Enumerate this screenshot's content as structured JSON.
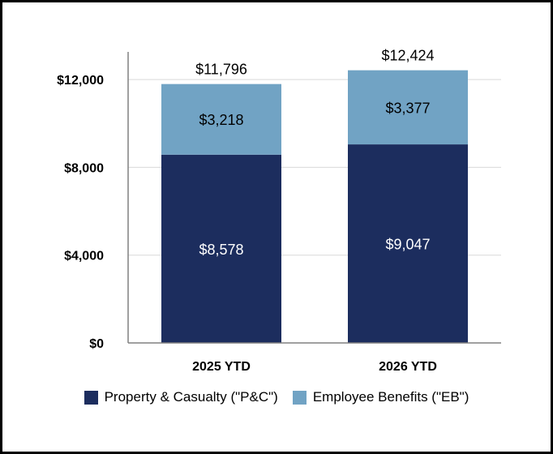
{
  "chart_data": {
    "type": "bar",
    "stacked": true,
    "categories": [
      "2025 YTD",
      "2026 YTD"
    ],
    "series": [
      {
        "name": "Property & Casualty (\"P&C\")",
        "values": [
          8578,
          9047
        ],
        "labels": [
          "$8,578",
          "$9,047"
        ],
        "color": "#1c2d5e",
        "label_color": "#ffffff"
      },
      {
        "name": "Employee Benefits (\"EB\")",
        "values": [
          3218,
          3377
        ],
        "labels": [
          "$3,218",
          "$3,377"
        ],
        "color": "#71a3c4",
        "label_color": "#000000"
      }
    ],
    "totals": [
      11796,
      12424
    ],
    "total_labels": [
      "$11,796",
      "$12,424"
    ],
    "y_ticks": [
      0,
      4000,
      8000,
      12000
    ],
    "y_tick_labels": [
      "$0",
      "$4,000",
      "$8,000",
      "$12,000"
    ],
    "ylim": [
      0,
      14000
    ],
    "grid": true,
    "legend_position": "bottom"
  }
}
